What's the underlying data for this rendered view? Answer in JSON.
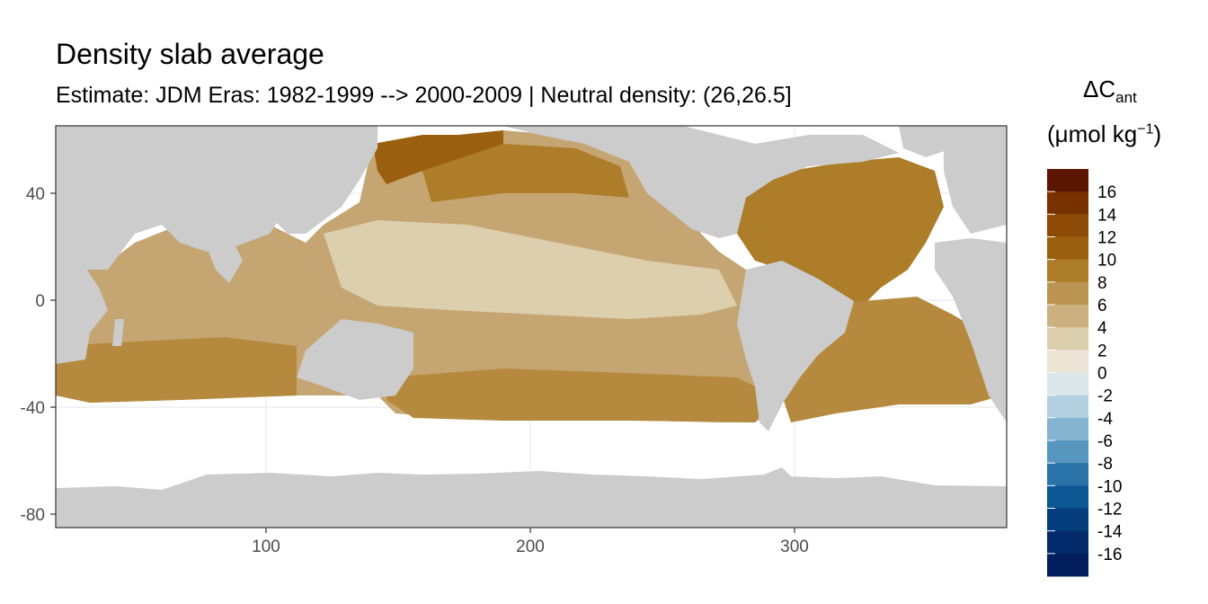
{
  "title": "Density slab average",
  "subtitle": "Estimate: JDM Eras: 1982-1999 --> 2000-2009 | Neutral density: (26,26.5]",
  "legend": {
    "title_main": "ΔC",
    "title_sub": "ant",
    "unit_prefix": "(μmol kg",
    "unit_sup": "−1",
    "unit_suffix": ")",
    "labels": [
      "16",
      "14",
      "12",
      "10",
      "8",
      "6",
      "4",
      "2",
      "0",
      "-2",
      "-4",
      "-6",
      "-8",
      "-10",
      "-12",
      "-14",
      "-16"
    ],
    "colors": [
      "#5c1500",
      "#7a3100",
      "#8c4a06",
      "#9b600f",
      "#ad7d2a",
      "#bc9552",
      "#ccb07f",
      "#dccfad",
      "#ece4d5",
      "#dce7ec",
      "#b4d1e2",
      "#84b4d0",
      "#5797bf",
      "#2a73a8",
      "#0b5693",
      "#053d7d",
      "#032a6b",
      "#021d5c"
    ]
  },
  "chart_data": {
    "type": "heatmap",
    "xlim": [
      20,
      380
    ],
    "ylim": [
      -85,
      65
    ],
    "x_ticks": [
      100,
      200,
      300
    ],
    "y_ticks": [
      40,
      0,
      -40,
      -80
    ],
    "grid": true,
    "fill_range": [
      -18,
      18
    ],
    "land_color": "#cccccc",
    "no_data_color": "#ffffff"
  }
}
